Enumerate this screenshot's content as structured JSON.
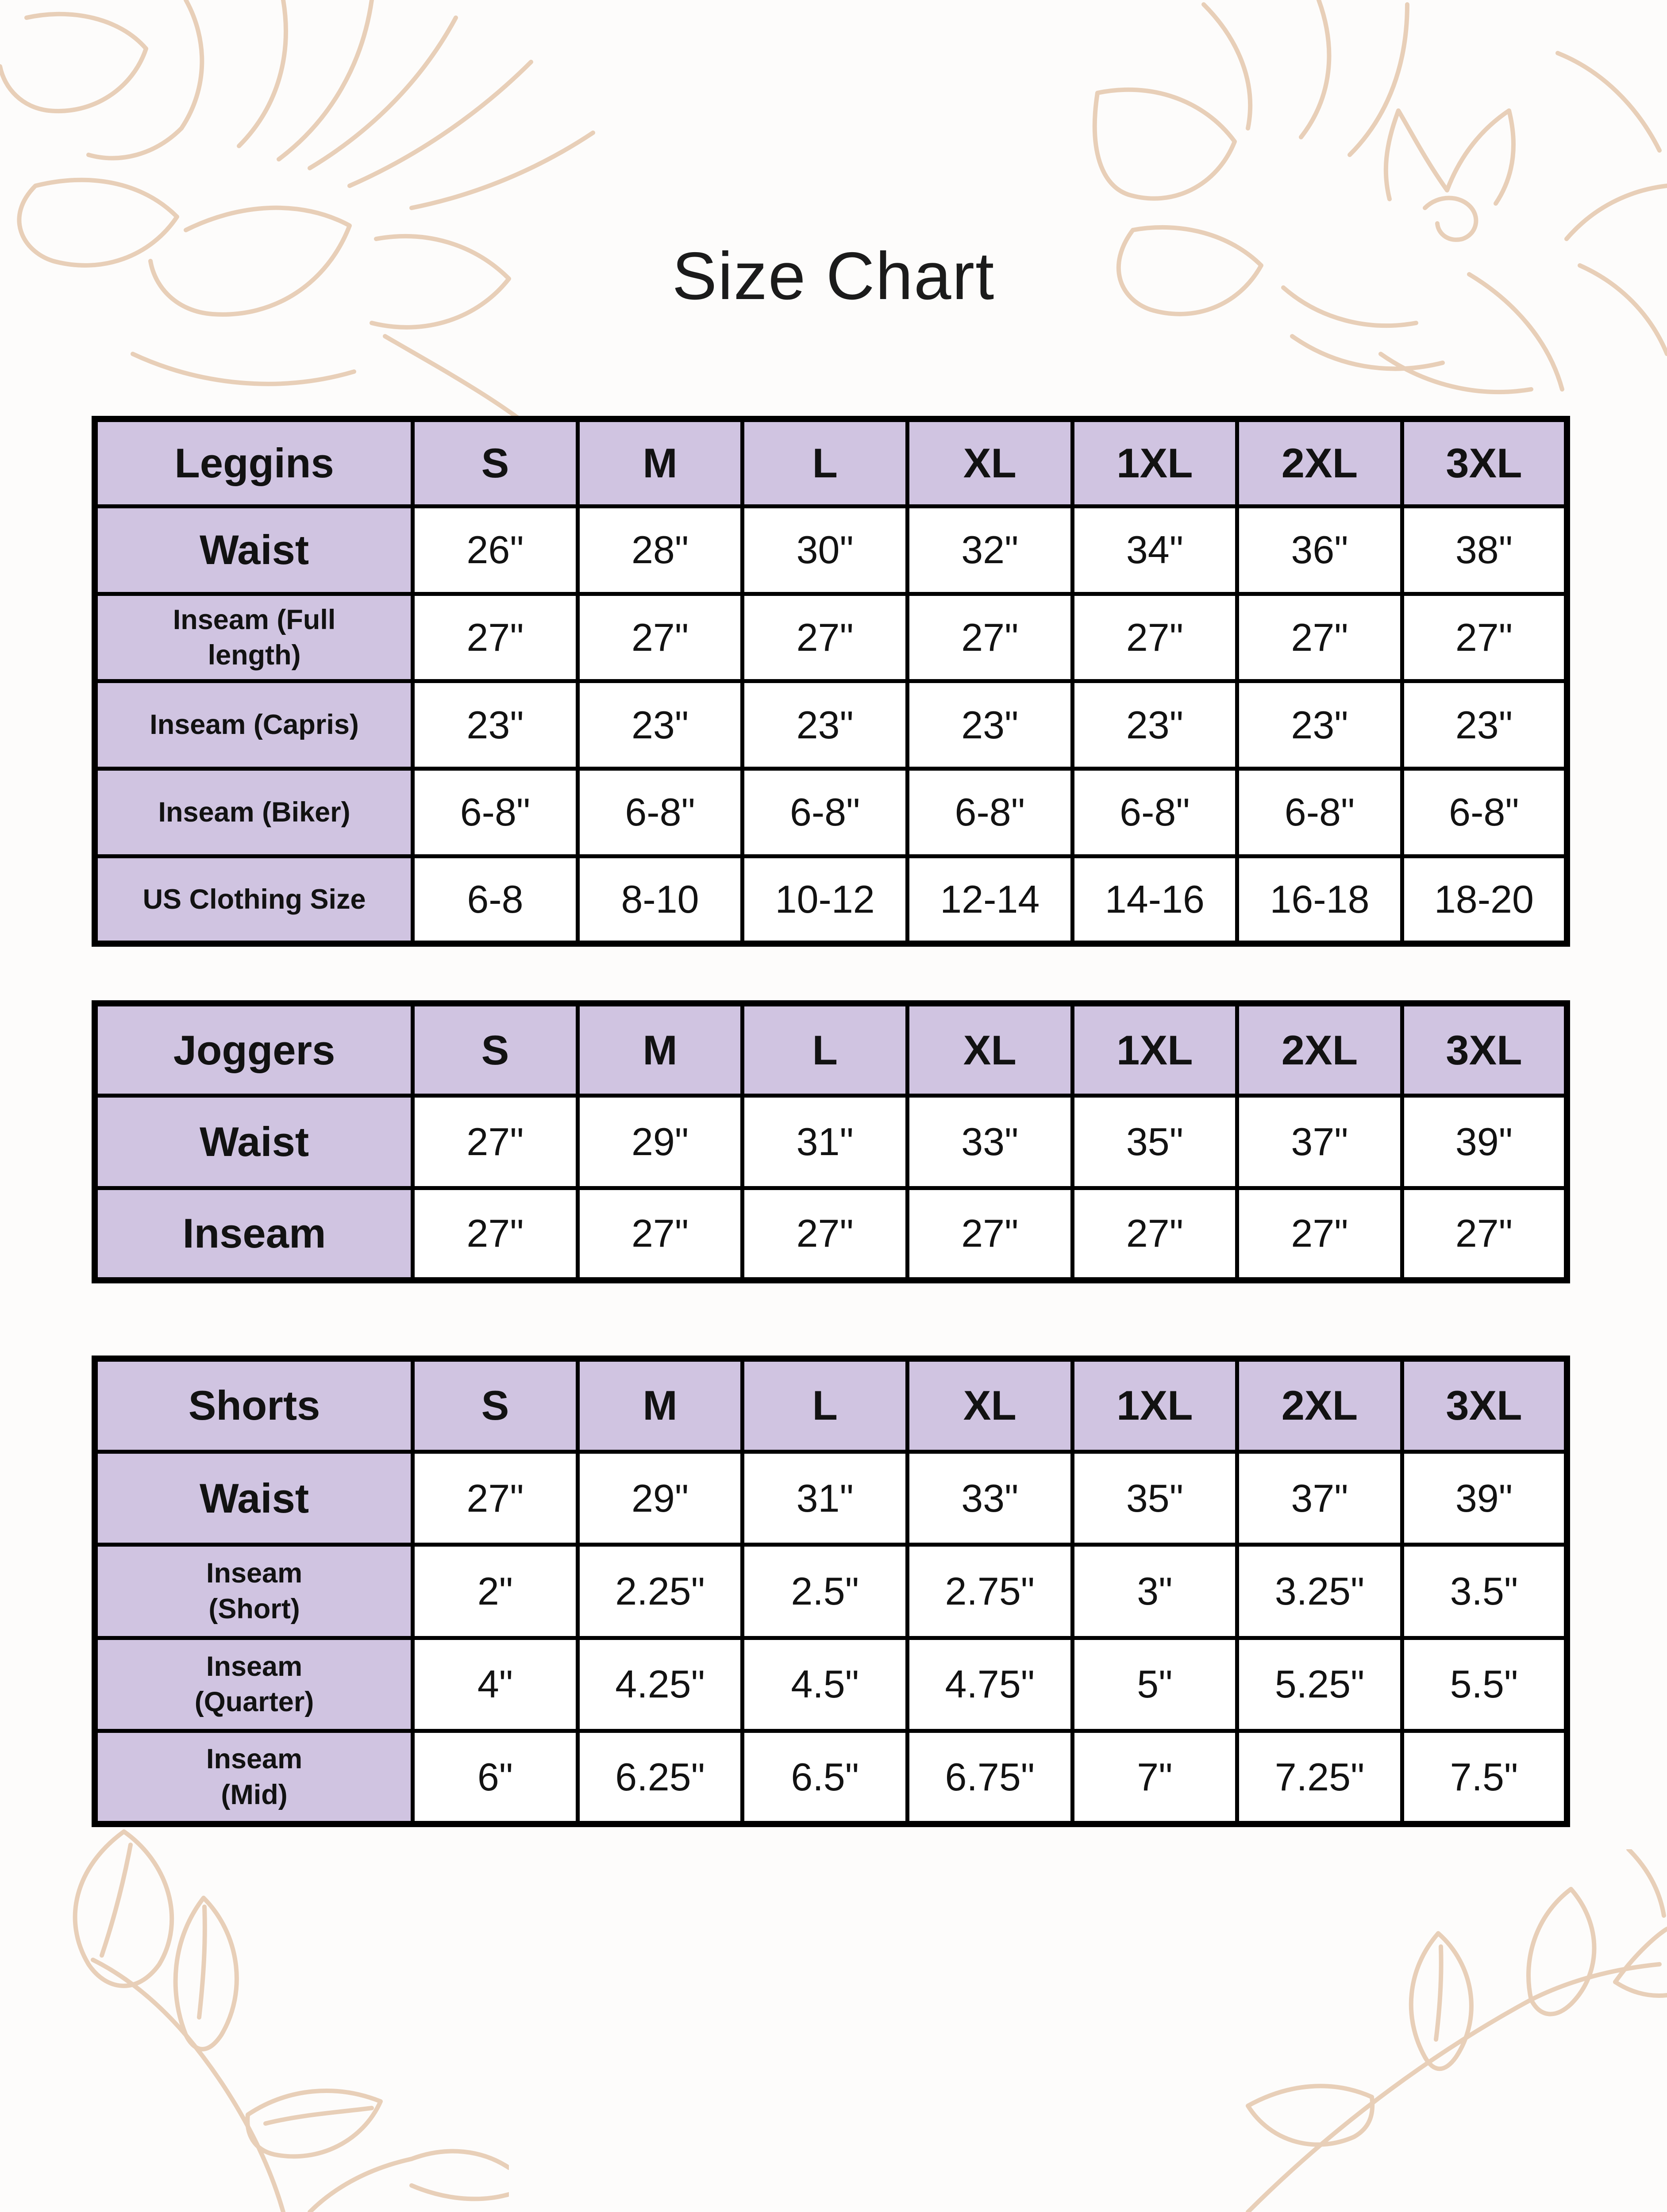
{
  "page": {
    "title": "Size Chart",
    "background_color": "#fdfcfb",
    "accent_color": "#d0c4e1",
    "border_color": "#000000",
    "text_color": "#121212",
    "floral_color": "#e8cfb8"
  },
  "sizes": [
    "S",
    "M",
    "L",
    "XL",
    "1XL",
    "2XL",
    "3XL"
  ],
  "tables": [
    {
      "name": "Leggins",
      "rows": [
        {
          "label": "Waist",
          "label_style": "large",
          "values": [
            "26\"",
            "28\"",
            "30\"",
            "32\"",
            "34\"",
            "36\"",
            "38\""
          ]
        },
        {
          "label": "Inseam (Full\nlength)",
          "label_style": "small",
          "values": [
            "27\"",
            "27\"",
            "27\"",
            "27\"",
            "27\"",
            "27\"",
            "27\""
          ]
        },
        {
          "label": "Inseam (Capris)",
          "label_style": "small",
          "values": [
            "23\"",
            "23\"",
            "23\"",
            "23\"",
            "23\"",
            "23\"",
            "23\""
          ]
        },
        {
          "label": "Inseam (Biker)",
          "label_style": "small",
          "values": [
            "6-8\"",
            "6-8\"",
            "6-8\"",
            "6-8\"",
            "6-8\"",
            "6-8\"",
            "6-8\""
          ]
        },
        {
          "label": "US Clothing Size",
          "label_style": "small",
          "values": [
            "6-8",
            "8-10",
            "10-12",
            "12-14",
            "14-16",
            "16-18",
            "18-20"
          ]
        }
      ]
    },
    {
      "name": "Joggers",
      "rows": [
        {
          "label": "Waist",
          "label_style": "large",
          "values": [
            "27\"",
            "29\"",
            "31\"",
            "33\"",
            "35\"",
            "37\"",
            "39\""
          ]
        },
        {
          "label": "Inseam",
          "label_style": "large",
          "values": [
            "27\"",
            "27\"",
            "27\"",
            "27\"",
            "27\"",
            "27\"",
            "27\""
          ]
        }
      ]
    },
    {
      "name": "Shorts",
      "rows": [
        {
          "label": "Waist",
          "label_style": "large",
          "values": [
            "27\"",
            "29\"",
            "31\"",
            "33\"",
            "35\"",
            "37\"",
            "39\""
          ]
        },
        {
          "label": "Inseam\n(Short)",
          "label_style": "small",
          "values": [
            "2\"",
            "2.25\"",
            "2.5\"",
            "2.75\"",
            "3\"",
            "3.25\"",
            "3.5\""
          ]
        },
        {
          "label": "Inseam\n(Quarter)",
          "label_style": "small",
          "values": [
            "4\"",
            "4.25\"",
            "4.5\"",
            "4.75\"",
            "5\"",
            "5.25\"",
            "5.5\""
          ]
        },
        {
          "label": "Inseam\n(Mid)",
          "label_style": "small",
          "values": [
            "6\"",
            "6.25\"",
            "6.5\"",
            "6.75\"",
            "7\"",
            "7.25\"",
            "7.5\""
          ]
        }
      ]
    }
  ],
  "decorations": [
    "flower-top-left",
    "flower-top-right",
    "leaves-bottom-left",
    "leaves-bottom-right"
  ]
}
